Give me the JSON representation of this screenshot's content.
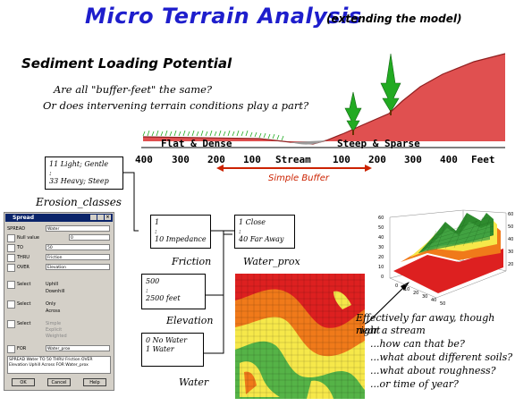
{
  "title": "Micro Terrain Analysis",
  "subtitle": "(extending the model)",
  "section": "Sediment Loading Potential",
  "questions": [
    "Are all \"buffer-feet\" the same?",
    "Or does intervening terrain conditions play a part?"
  ],
  "terrain": {
    "left": "Flat & Dense",
    "right": "Steep & Sparse"
  },
  "axis": {
    "ticks": [
      "400",
      "300",
      "200",
      "100",
      "Stream",
      "100",
      "200",
      "300",
      "400",
      "Feet"
    ]
  },
  "buffer_label": "Simple Buffer",
  "boxes": {
    "erosion": {
      "line1": "11 Light; Gentle",
      "line2": ":",
      "line3": "33 Heavy; Steep",
      "label": "Erosion_classes"
    },
    "friction": {
      "line1": "1",
      "line2": ":",
      "line3": "10 Impedance",
      "label": "Friction"
    },
    "water_prox": {
      "line1": "1 Close",
      "line2": ":",
      "line3": "40 Far Away",
      "label": "Water_prox"
    },
    "elevation": {
      "line1": "500",
      "line2": ":",
      "line3": "2500 feet",
      "label": "Elevation"
    },
    "water": {
      "line1": "0 No Water",
      "line2": "1 Water",
      "label": "Water"
    }
  },
  "dialog": {
    "title": "Spread",
    "rows": {
      "spread": {
        "label": "SPREAD",
        "value": "Water"
      },
      "null": {
        "label": "Null value",
        "value": "0"
      },
      "to": {
        "label": "TO",
        "value": "50"
      },
      "thru": {
        "label": "THRU",
        "value": "Friction"
      },
      "over": {
        "label": "OVER",
        "value": "Elevation"
      },
      "for": {
        "label": "FOR",
        "value": "Water_prox"
      }
    },
    "select1": {
      "label": "Select",
      "opt1": "Uphill",
      "opt2": "Downhill"
    },
    "select2": {
      "label": "Select",
      "opt1": "Only",
      "opt2": "Across"
    },
    "select3": {
      "label": "Select",
      "opt1": "Simple",
      "opt2": "Explicit",
      "opt3": "Weighted"
    },
    "command": "SPREAD Water TO 50 THRU Friction OVER Elevation Uphill Across FOR Water_prox",
    "buttons": {
      "ok": "OK",
      "cancel": "Cancel",
      "help": "Help"
    }
  },
  "note": {
    "line1": "Effectively far away, though right",
    "line2": "near a stream",
    "line3": "...how can that be?",
    "line4": "...what about different soils?",
    "line5": "...what about roughness?",
    "line6": "...or time of year?"
  },
  "plot3d": {
    "zticks": [
      "60",
      "50",
      "40",
      "30",
      "20",
      "10",
      "0"
    ],
    "xticks": [
      "0",
      "10",
      "20",
      "30",
      "40",
      "50"
    ]
  },
  "colors": {
    "title": "#1e1ecc",
    "buffer": "#cc2200",
    "terrain_fill": "#e05050",
    "tree": "#22aa22"
  }
}
